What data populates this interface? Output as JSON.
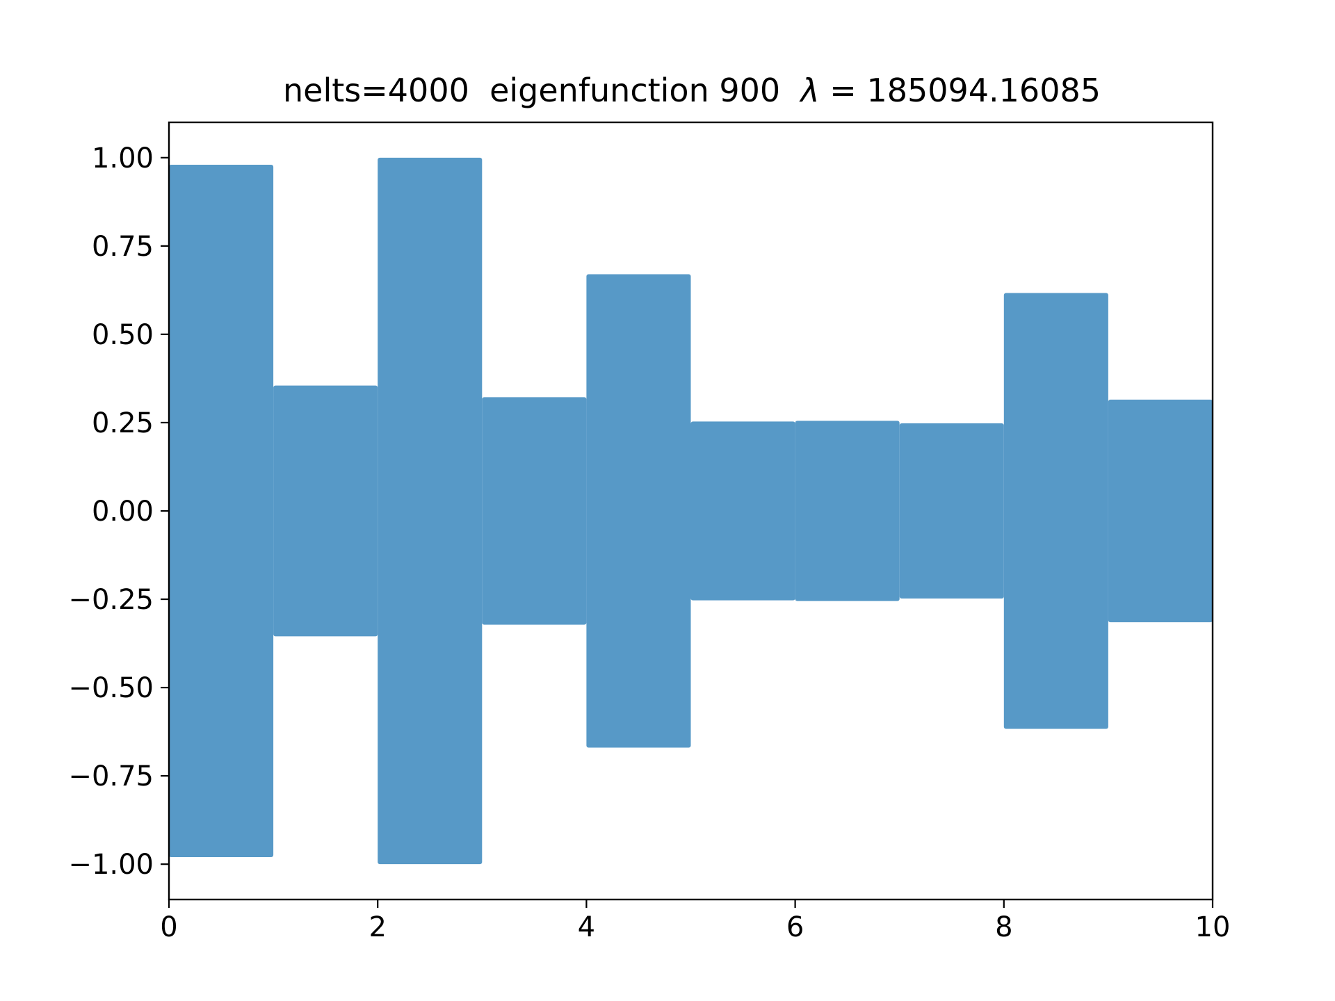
{
  "chart_data": {
    "type": "line",
    "title_prefix": "nelts=4000  eigenfunction 900  ",
    "title_lambda": "λ",
    "title_equals": " = ",
    "title_value": "185094.16085",
    "xlabel": "",
    "ylabel": "",
    "xlim": [
      0,
      10
    ],
    "ylim": [
      -1.1,
      1.1
    ],
    "grid": false,
    "legend": "none",
    "x_ticks": [
      0,
      2,
      4,
      6,
      8,
      10
    ],
    "x_tick_labels": [
      "0",
      "2",
      "4",
      "6",
      "8",
      "10"
    ],
    "y_ticks": [
      1.0,
      0.75,
      0.5,
      0.25,
      0.0,
      -0.25,
      -0.5,
      -0.75,
      -1.0
    ],
    "y_tick_labels": [
      "1.00",
      "0.75",
      "0.50",
      "0.25",
      "0.00",
      "−0.25",
      "−0.50",
      "−0.75",
      "−1.00"
    ],
    "series": [
      {
        "name": "eigenfunction 900",
        "color": "#5799c7",
        "description": "rapidly oscillating eigenfunction; envelope amplitude per unit segment",
        "segments": [
          {
            "x_start": 0,
            "x_end": 1,
            "amplitude": 0.98
          },
          {
            "x_start": 1,
            "x_end": 2,
            "amplitude": 0.355
          },
          {
            "x_start": 2,
            "x_end": 3,
            "amplitude": 1.0
          },
          {
            "x_start": 3,
            "x_end": 4,
            "amplitude": 0.322
          },
          {
            "x_start": 4,
            "x_end": 5,
            "amplitude": 0.67
          },
          {
            "x_start": 5,
            "x_end": 6,
            "amplitude": 0.253
          },
          {
            "x_start": 6,
            "x_end": 7,
            "amplitude": 0.255
          },
          {
            "x_start": 7,
            "x_end": 8,
            "amplitude": 0.248
          },
          {
            "x_start": 8,
            "x_end": 9,
            "amplitude": 0.617
          },
          {
            "x_start": 9,
            "x_end": 10,
            "amplitude": 0.315
          }
        ]
      }
    ]
  }
}
